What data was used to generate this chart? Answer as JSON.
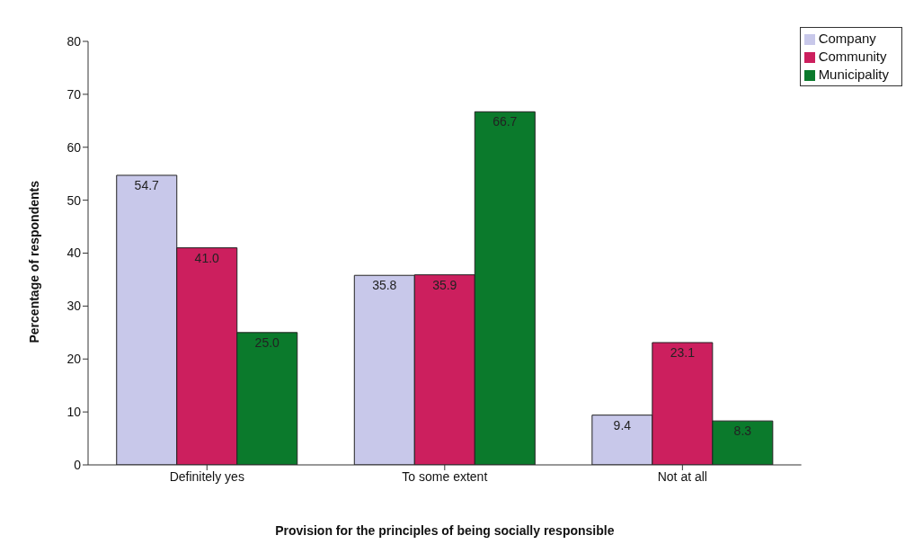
{
  "chart_data": {
    "type": "bar",
    "xlabel": "Provision for the principles of being socially responsible",
    "ylabel": "Percentage of respondents",
    "categories": [
      "Definitely  yes",
      "To some extent",
      "Not at all"
    ],
    "series": [
      {
        "name": "Company",
        "color": "#c8c8ea",
        "values": [
          54.7,
          35.8,
          9.4
        ],
        "value_labels": [
          "54.7",
          "35.8",
          "9.4"
        ]
      },
      {
        "name": "Community",
        "color": "#cc1f5e",
        "values": [
          41.0,
          35.9,
          23.1
        ],
        "value_labels": [
          "41.0",
          "35.9",
          "23.1"
        ]
      },
      {
        "name": "Municipality",
        "color": "#0b7a2c",
        "values": [
          25.0,
          66.7,
          8.3
        ],
        "value_labels": [
          "25.0",
          "66.7",
          "8.3"
        ]
      }
    ],
    "ylim": [
      0,
      80
    ],
    "yticks": [
      0,
      10,
      20,
      30,
      40,
      50,
      60,
      70,
      80
    ],
    "grid": false,
    "legend": "top right"
  }
}
